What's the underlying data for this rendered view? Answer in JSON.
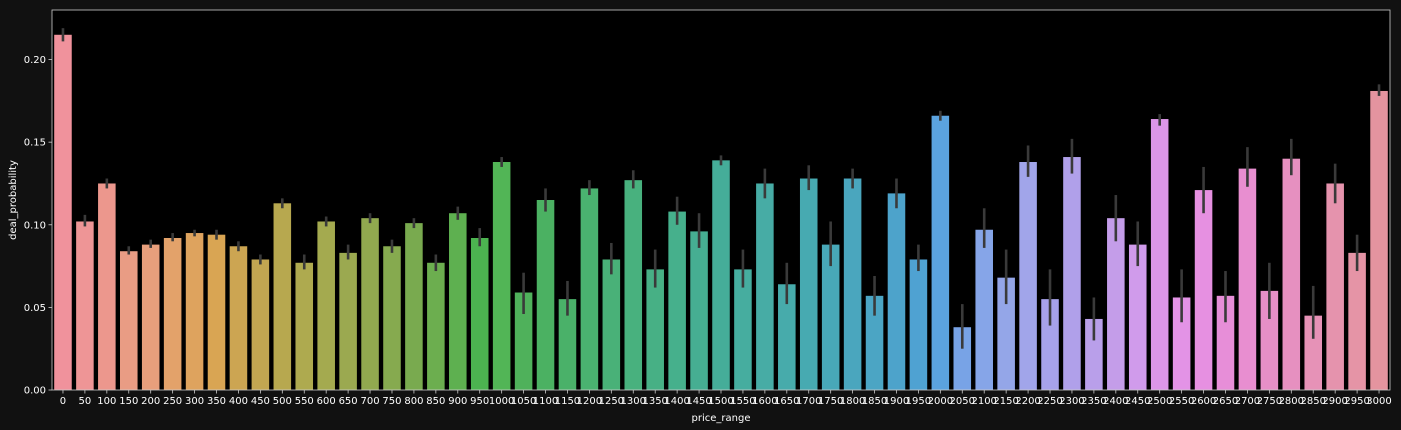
{
  "colors": {
    "figure_background": "#111111",
    "axes_background": "#000000",
    "axes_frame": "#cccccc",
    "error_bar": "#3a3a3a",
    "text": "#ffffff"
  },
  "chart_data": {
    "type": "bar",
    "xlabel": "price_range",
    "ylabel": "deal_probability",
    "ylim": [
      0,
      0.23
    ],
    "yticks": [
      "0.00",
      "0.05",
      "0.10",
      "0.15",
      "0.20"
    ],
    "ytick_values": [
      0,
      0.05,
      0.1,
      0.15,
      0.2
    ],
    "grid": false,
    "error_bars": true,
    "categories": [
      "0",
      "50",
      "100",
      "150",
      "200",
      "250",
      "300",
      "350",
      "400",
      "450",
      "500",
      "550",
      "600",
      "650",
      "700",
      "750",
      "800",
      "850",
      "900",
      "950",
      "1000",
      "1050",
      "1100",
      "1150",
      "1200",
      "1250",
      "1300",
      "1350",
      "1400",
      "1450",
      "1500",
      "1550",
      "1600",
      "1650",
      "1700",
      "1750",
      "1800",
      "1850",
      "1900",
      "1950",
      "2000",
      "2050",
      "2100",
      "2150",
      "2200",
      "2250",
      "2300",
      "2350",
      "2400",
      "2450",
      "2500",
      "2550",
      "2600",
      "2650",
      "2700",
      "2750",
      "2800",
      "2850",
      "2900",
      "2950",
      "3000"
    ],
    "values": [
      0.215,
      0.102,
      0.125,
      0.084,
      0.088,
      0.092,
      0.095,
      0.094,
      0.087,
      0.079,
      0.113,
      0.077,
      0.102,
      0.083,
      0.104,
      0.087,
      0.101,
      0.077,
      0.107,
      0.092,
      0.138,
      0.059,
      0.115,
      0.055,
      0.122,
      0.079,
      0.127,
      0.073,
      0.108,
      0.096,
      0.139,
      0.073,
      0.125,
      0.064,
      0.128,
      0.088,
      0.128,
      0.057,
      0.119,
      0.079,
      0.166,
      0.038,
      0.097,
      0.068,
      0.138,
      0.055,
      0.141,
      0.043,
      0.104,
      0.088,
      0.164,
      0.056,
      0.121,
      0.057,
      0.134,
      0.06,
      0.14,
      0.045,
      0.125,
      0.083,
      0.181
    ],
    "error_low": [
      0.211,
      0.099,
      0.122,
      0.082,
      0.086,
      0.09,
      0.093,
      0.091,
      0.084,
      0.076,
      0.11,
      0.073,
      0.099,
      0.079,
      0.101,
      0.083,
      0.098,
      0.072,
      0.103,
      0.087,
      0.135,
      0.046,
      0.108,
      0.045,
      0.118,
      0.07,
      0.122,
      0.062,
      0.1,
      0.086,
      0.136,
      0.062,
      0.116,
      0.052,
      0.121,
      0.075,
      0.122,
      0.045,
      0.11,
      0.072,
      0.163,
      0.025,
      0.086,
      0.052,
      0.129,
      0.039,
      0.131,
      0.03,
      0.09,
      0.075,
      0.16,
      0.041,
      0.107,
      0.041,
      0.123,
      0.043,
      0.13,
      0.031,
      0.113,
      0.072,
      0.178
    ],
    "error_high": [
      0.219,
      0.106,
      0.128,
      0.087,
      0.091,
      0.095,
      0.097,
      0.097,
      0.09,
      0.082,
      0.116,
      0.082,
      0.105,
      0.088,
      0.107,
      0.091,
      0.104,
      0.082,
      0.111,
      0.098,
      0.141,
      0.071,
      0.122,
      0.066,
      0.127,
      0.089,
      0.133,
      0.085,
      0.117,
      0.107,
      0.142,
      0.085,
      0.134,
      0.077,
      0.136,
      0.102,
      0.134,
      0.069,
      0.128,
      0.088,
      0.169,
      0.052,
      0.11,
      0.085,
      0.148,
      0.073,
      0.152,
      0.056,
      0.118,
      0.102,
      0.167,
      0.073,
      0.135,
      0.072,
      0.147,
      0.077,
      0.152,
      0.063,
      0.137,
      0.094,
      0.185
    ],
    "bar_colors": [
      "#f0929c",
      "#ee9596",
      "#ec978d",
      "#e99c84",
      "#e89f7c",
      "#e3a26a",
      "#dea35e",
      "#d9a553",
      "#cca552",
      "#c2a651",
      "#b7a84f",
      "#aeaa4f",
      "#a4aa4f",
      "#9ba950",
      "#91a94f",
      "#86aa4f",
      "#79aa4f",
      "#6cae4f",
      "#5eb050",
      "#4cb350",
      "#52b556",
      "#4fb15b",
      "#4bb162",
      "#4ab169",
      "#4ab270",
      "#49b178",
      "#48b17e",
      "#47b085",
      "#46b08c",
      "#46ae92",
      "#45ad99",
      "#46ad9f",
      "#47aca5",
      "#47abab",
      "#47aab1",
      "#48a8b8",
      "#4aa6be",
      "#4ba5c4",
      "#4da3cb",
      "#4fa2d2",
      "#5ba3df",
      "#78a3e6",
      "#86a5e8",
      "#94a6e8",
      "#a1a5ea",
      "#a7a2ea",
      "#b0a0ea",
      "#b99fea",
      "#c49de9",
      "#d09beb",
      "#dc96e8",
      "#e393e6",
      "#e690e1",
      "#e78ed8",
      "#e88ed0",
      "#e68fc7",
      "#e690c0",
      "#e692b7",
      "#e593ad",
      "#e594a6",
      "#e4949f"
    ]
  }
}
